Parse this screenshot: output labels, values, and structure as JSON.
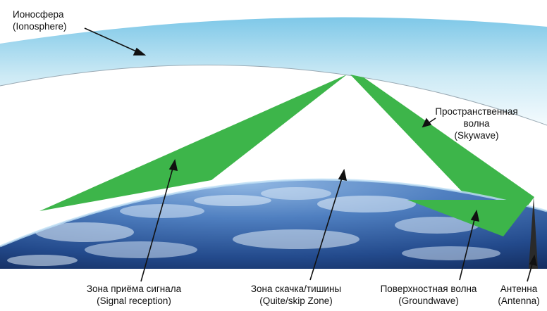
{
  "labels": {
    "ionosphere": {
      "ru": "Ионосфера",
      "en": "(Ionosphere)"
    },
    "skywave": {
      "ru1": "Пространственная",
      "ru2": "волна",
      "en": "(Skywave)"
    },
    "signal_reception": {
      "ru": "Зона приёма сигнала",
      "en": "(Signal reception)"
    },
    "skip_zone": {
      "ru": "Зона скачка/тишины",
      "en": "(Quite/skip Zone)"
    },
    "groundwave": {
      "ru": "Поверхностная волна",
      "en": "(Groundwave)"
    },
    "antenna": {
      "ru": "Антенна",
      "en": "(Antenna)"
    }
  },
  "colors": {
    "wave_green": "#3db54a",
    "ionosphere_blue": "#bfe3f2",
    "earth_dark": "#1d3f7a",
    "earth_light": "#6f9fd4"
  }
}
